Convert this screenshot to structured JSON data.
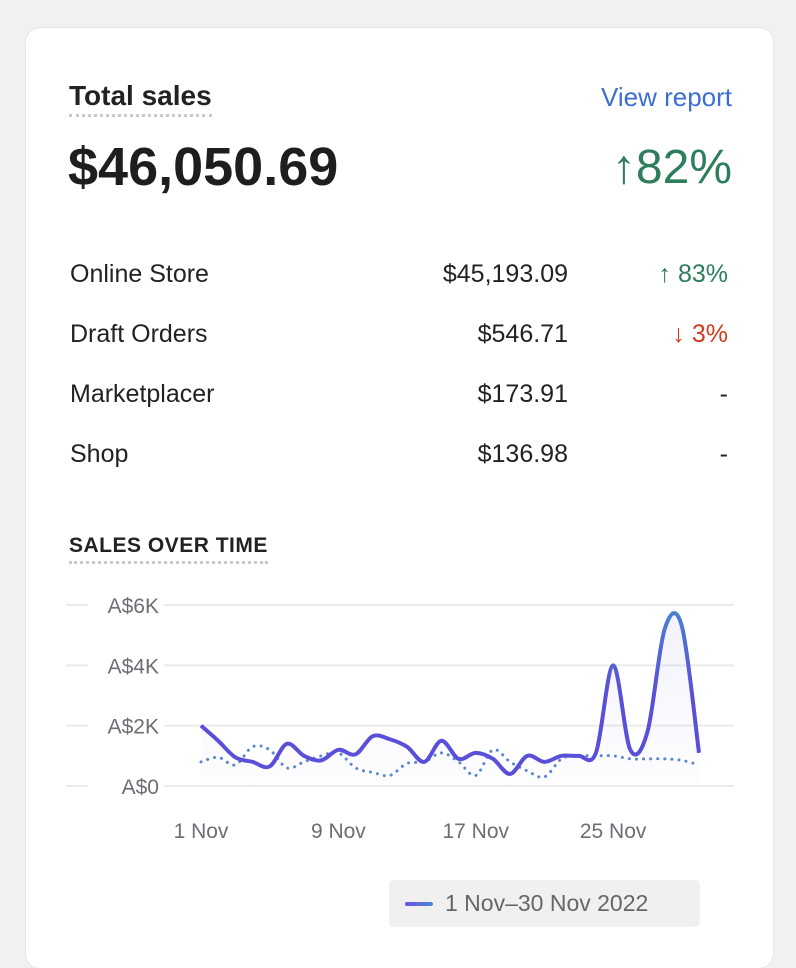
{
  "header": {
    "title": "Total sales",
    "view_report": "View report",
    "total": "$46,050.69",
    "change": "↑82%"
  },
  "breakdown": [
    {
      "name": "Online Store",
      "value": "$45,193.09",
      "change": "↑ 83%",
      "dir": "up"
    },
    {
      "name": "Draft Orders",
      "value": "$546.71",
      "change": "↓ 3%",
      "dir": "down"
    },
    {
      "name": "Marketplacer",
      "value": "$173.91",
      "change": "-",
      "dir": "none"
    },
    {
      "name": "Shop",
      "value": "$136.98",
      "change": "-",
      "dir": "none"
    }
  ],
  "chart_section_title": "SALES OVER TIME",
  "chart_data": {
    "type": "line",
    "y_ticks": [
      "A$0",
      "A$2K",
      "A$4K",
      "A$6K"
    ],
    "x_ticks": [
      "1 Nov",
      "9 Nov",
      "17 Nov",
      "25 Nov"
    ],
    "ylim": [
      0,
      6000
    ],
    "grid": true,
    "x": [
      1,
      2,
      3,
      4,
      5,
      6,
      7,
      8,
      9,
      10,
      11,
      12,
      13,
      14,
      15,
      16,
      17,
      18,
      19,
      20,
      21,
      22,
      23,
      24,
      25,
      26,
      27,
      28,
      29,
      30
    ],
    "series": [
      {
        "name": "1 Nov–30 Nov 2022",
        "style": "solid",
        "color": "#5a52d8",
        "values": [
          2000,
          1500,
          950,
          800,
          650,
          1400,
          1000,
          850,
          1200,
          1050,
          1650,
          1550,
          1300,
          800,
          1500,
          900,
          1100,
          900,
          400,
          1000,
          800,
          1000,
          1000,
          1100,
          4000,
          1200,
          1800,
          5200,
          5300,
          1100
        ]
      },
      {
        "style": "dotted",
        "color": "#5b86d0",
        "values": [
          800,
          950,
          700,
          1300,
          1200,
          600,
          800,
          1000,
          1100,
          600,
          450,
          350,
          750,
          800,
          1100,
          800,
          350,
          1200,
          800,
          500,
          300,
          900,
          1000,
          1000,
          1000,
          900,
          900,
          900,
          850,
          700
        ]
      }
    ],
    "legend": "bottom-center"
  }
}
